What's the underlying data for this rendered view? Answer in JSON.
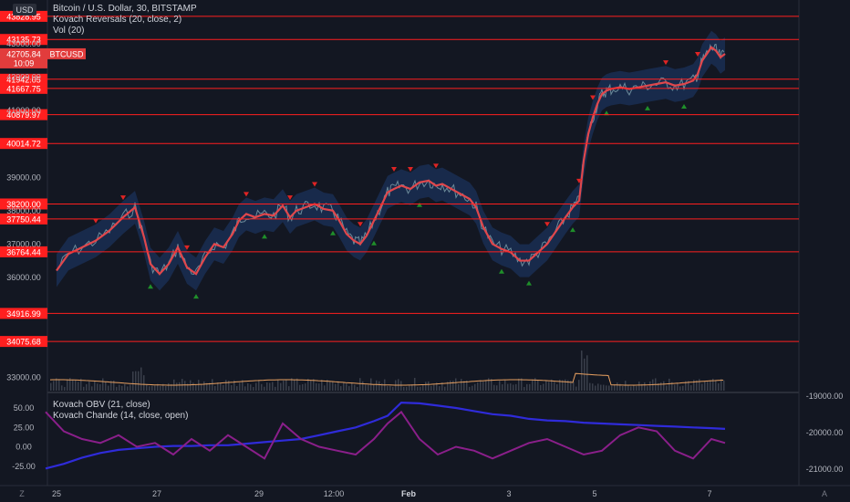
{
  "header": {
    "currency_label": "USD",
    "symbol_title": "Bitcoin / U.S. Dollar, 30, BITSTAMP",
    "indicator_1": "Kovach Reversals (20, close, 2)",
    "indicator_2": "Vol (20)",
    "indicator_3": "Kovach OBV (21, close)",
    "indicator_4": "Kovach Chande (14, close, open)"
  },
  "colors": {
    "background": "#131722",
    "level_line": "#ff1f1f",
    "band_fill": "#1e3a6e",
    "mid_line": "#e0474c",
    "bear_marker": "#e02424",
    "bull_marker": "#1f8f2a",
    "obv_line": "#2f2bd9",
    "chande_line": "#8a1f8a",
    "volume_ma": "#e8a060"
  },
  "chart_data": [
    {
      "type": "line",
      "title": "Bitcoin / U.S. Dollar, 30, BITSTAMP",
      "price_tag": {
        "label": "BTCUSD",
        "value": "42705.84",
        "countdown": "10:09"
      },
      "y_axis_ticks": [
        "33000.00",
        "36000.00",
        "37000.00",
        "38000.00",
        "39000.00",
        "41000.00",
        "42000.00",
        "43000.00"
      ],
      "ylim": [
        32600,
        44100
      ],
      "level_labels": [
        "43828.95",
        "43135.73",
        "41942.05",
        "41667.75",
        "40879.97",
        "40014.72",
        "38200.00",
        "37750.44",
        "36764.44",
        "34916.99",
        "34075.68"
      ],
      "levels": [
        43828.95,
        43135.73,
        41942.05,
        41667.75,
        40879.97,
        40014.72,
        38200.0,
        37750.44,
        36764.44,
        34916.99,
        34075.68
      ],
      "x_labels": [
        "25",
        "27",
        "29",
        "12:00",
        "Feb",
        "3",
        "5",
        "7"
      ],
      "series": [
        {
          "x": [
            62,
            75,
            90,
            105,
            120,
            135,
            148,
            158,
            165,
            175,
            185,
            195,
            205,
            215,
            225,
            235,
            245,
            255,
            262,
            270,
            280,
            290,
            300,
            310,
            318,
            325,
            335,
            345,
            355,
            365,
            372,
            380,
            388,
            395,
            402,
            410,
            418,
            425,
            432,
            440,
            450,
            460,
            470,
            478,
            485,
            495,
            505,
            515,
            522,
            530,
            540,
            550,
            560,
            570,
            580,
            590,
            600,
            610,
            620,
            628,
            635,
            640,
            645,
            650,
            655,
            660,
            665,
            670,
            680,
            690,
            700,
            710,
            720,
            730,
            740,
            750,
            760,
            765,
            770,
            775,
            780,
            785,
            790,
            795
          ],
          "values": [
            36200,
            36700,
            36900,
            37100,
            37400,
            37800,
            38100,
            37200,
            36400,
            36100,
            36400,
            36900,
            36300,
            36100,
            36600,
            37000,
            36900,
            37300,
            37700,
            37900,
            37800,
            37900,
            37850,
            38150,
            37800,
            38000,
            38100,
            38200,
            38050,
            38000,
            37700,
            37300,
            37100,
            37000,
            37250,
            37700,
            38150,
            38550,
            38650,
            38750,
            38650,
            38850,
            38900,
            38750,
            38800,
            38650,
            38500,
            38350,
            38100,
            37500,
            37000,
            36850,
            36750,
            36500,
            36500,
            36750,
            37000,
            37400,
            37800,
            38100,
            38300,
            39500,
            40300,
            40800,
            41200,
            41500,
            41600,
            41650,
            41700,
            41650,
            41700,
            41750,
            41800,
            41850,
            41750,
            41800,
            41900,
            42100,
            42500,
            42700,
            42900,
            42800,
            42600,
            42705
          ]
        }
      ],
      "volume_axis_ticks": [
        "-19000.00",
        "-20000.00",
        "-21000.00"
      ]
    },
    {
      "type": "line",
      "y_axis_ticks": [
        "50.00",
        "25.00",
        "0.00",
        "-25.00"
      ],
      "ylim": [
        -50,
        70
      ],
      "x": [
        50,
        70,
        90,
        110,
        130,
        150,
        170,
        190,
        210,
        230,
        250,
        270,
        290,
        310,
        330,
        350,
        370,
        390,
        410,
        425,
        440,
        460,
        480,
        500,
        520,
        540,
        560,
        580,
        600,
        620,
        640,
        660,
        680,
        700,
        720,
        740,
        760,
        780,
        795
      ],
      "series": [
        {
          "name": "Kovach OBV",
          "values": [
            -28,
            -22,
            -14,
            -8,
            -4,
            -2,
            0,
            1,
            1,
            2,
            2,
            4,
            6,
            8,
            10,
            15,
            20,
            25,
            33,
            40,
            57,
            56,
            53,
            50,
            46,
            42,
            40,
            36,
            34,
            33,
            31,
            30,
            29,
            28,
            27,
            26,
            25,
            24,
            23
          ]
        },
        {
          "name": "Kovach Chande",
          "values": [
            45,
            20,
            10,
            5,
            15,
            0,
            5,
            -10,
            10,
            -5,
            15,
            0,
            -15,
            30,
            10,
            0,
            -5,
            -10,
            10,
            30,
            45,
            10,
            -10,
            0,
            -5,
            -15,
            -5,
            5,
            10,
            0,
            -10,
            -5,
            15,
            25,
            20,
            -5,
            -15,
            10,
            5
          ]
        }
      ]
    }
  ]
}
